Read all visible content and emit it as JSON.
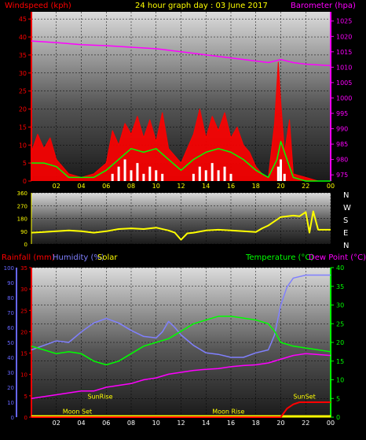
{
  "header": {
    "left_label": "Windspeed (kph)",
    "title": "24 hour graph day : 03 June 2017",
    "right_label": "Barometer (hpa)"
  },
  "panel3_header": {
    "rainfall_label": "Rainfall (mm)",
    "humidity_label": "Humidity (%)",
    "solar_label": "Solar",
    "temperature_label": "Temperature (°C)",
    "dewpoint_label": "Dew Point (°C)"
  },
  "colors": {
    "wind": "#ff0000",
    "gust": "#ff0000",
    "wind_avg": "#00ff00",
    "wind_low": "#ffffff",
    "barometer": "#ff00ff",
    "direction": "#ffff00",
    "humidity": "#8080ff",
    "temperature": "#00ff00",
    "dewpoint": "#ff00ff",
    "rain": "#ff0000",
    "solar": "#ffff00",
    "rain_axis": "#ff0000",
    "humidity_axis": "#6666ff",
    "temp_axis": "#00ff00",
    "annotation": "#ffff00"
  },
  "chart_data": [
    {
      "type": "line",
      "name": "wind-barometer",
      "x_ticks": [
        "02",
        "04",
        "06",
        "08",
        "10",
        "12",
        "14",
        "16",
        "18",
        "20",
        "22",
        "00"
      ],
      "y_left_ticks": [
        "0",
        "5",
        "10",
        "15",
        "20",
        "25",
        "30",
        "35",
        "40",
        "45"
      ],
      "y_left_range": [
        0,
        47
      ],
      "y_right_ticks": [
        "975",
        "980",
        "985",
        "990",
        "995",
        "1000",
        "1005",
        "1010",
        "1015",
        "1020",
        "1025"
      ],
      "y_right_range": [
        973,
        1028
      ],
      "x_range": [
        0,
        24
      ],
      "series": [
        {
          "key": "barometer",
          "values": [
            [
              0,
              1018.5
            ],
            [
              2,
              1018
            ],
            [
              4,
              1017.3
            ],
            [
              6,
              1017
            ],
            [
              8,
              1016.5
            ],
            [
              10,
              1016
            ],
            [
              12,
              1015
            ],
            [
              14,
              1014
            ],
            [
              16,
              1013
            ],
            [
              18,
              1012
            ],
            [
              19,
              1011.5
            ],
            [
              20,
              1012.5
            ],
            [
              21,
              1011.5
            ],
            [
              22,
              1011
            ],
            [
              24,
              1010.5
            ]
          ]
        },
        {
          "key": "gust",
          "values": [
            [
              0,
              8
            ],
            [
              0.5,
              13
            ],
            [
              1,
              9
            ],
            [
              1.5,
              12
            ],
            [
              2,
              6
            ],
            [
              3,
              2
            ],
            [
              4,
              1
            ],
            [
              5,
              2
            ],
            [
              6,
              5
            ],
            [
              6.5,
              14
            ],
            [
              7,
              10
            ],
            [
              7.5,
              16
            ],
            [
              8,
              13
            ],
            [
              8.5,
              18
            ],
            [
              9,
              12
            ],
            [
              9.5,
              17
            ],
            [
              10,
              11
            ],
            [
              10.5,
              19
            ],
            [
              11,
              9
            ],
            [
              11.5,
              7
            ],
            [
              12,
              5
            ],
            [
              12.5,
              9
            ],
            [
              13,
              13
            ],
            [
              13.5,
              20
            ],
            [
              14,
              12
            ],
            [
              14.5,
              18
            ],
            [
              15,
              14
            ],
            [
              15.5,
              19
            ],
            [
              16,
              12
            ],
            [
              16.5,
              15
            ],
            [
              17,
              10
            ],
            [
              17.5,
              8
            ],
            [
              18,
              4
            ],
            [
              18.5,
              2
            ],
            [
              19,
              1
            ],
            [
              19.5,
              16
            ],
            [
              19.8,
              33
            ],
            [
              20,
              22
            ],
            [
              20.3,
              8
            ],
            [
              20.7,
              17
            ],
            [
              21,
              2
            ],
            [
              22,
              1
            ],
            [
              23,
              0
            ],
            [
              24,
              0
            ]
          ]
        },
        {
          "key": "wind_avg",
          "values": [
            [
              0,
              5
            ],
            [
              1,
              5
            ],
            [
              2,
              4
            ],
            [
              3,
              1
            ],
            [
              4,
              1
            ],
            [
              5,
              1
            ],
            [
              6,
              3
            ],
            [
              7,
              6
            ],
            [
              8,
              9
            ],
            [
              9,
              8
            ],
            [
              10,
              9
            ],
            [
              11,
              6
            ],
            [
              12,
              3
            ],
            [
              13,
              6
            ],
            [
              14,
              8
            ],
            [
              15,
              9
            ],
            [
              16,
              8
            ],
            [
              17,
              6
            ],
            [
              18,
              3
            ],
            [
              19,
              1
            ],
            [
              19.7,
              6
            ],
            [
              20,
              11
            ],
            [
              20.5,
              6
            ],
            [
              21,
              1
            ],
            [
              22,
              0
            ],
            [
              24,
              0
            ]
          ]
        },
        {
          "key": "wind_low",
          "values": [
            [
              6.5,
              2
            ],
            [
              7,
              4
            ],
            [
              7.5,
              6
            ],
            [
              8,
              3
            ],
            [
              8.5,
              5
            ],
            [
              9,
              2
            ],
            [
              9.5,
              4
            ],
            [
              10,
              3
            ],
            [
              10.5,
              2
            ],
            [
              13,
              2
            ],
            [
              13.5,
              4
            ],
            [
              14,
              3
            ],
            [
              14.5,
              5
            ],
            [
              15,
              3
            ],
            [
              15.5,
              4
            ],
            [
              16,
              2
            ],
            [
              19.8,
              4
            ],
            [
              20,
              6
            ],
            [
              20.3,
              2
            ]
          ]
        }
      ]
    },
    {
      "type": "scatter",
      "name": "wind-direction",
      "x_range": [
        0,
        24
      ],
      "y_range": [
        0,
        360
      ],
      "y_ticks": [
        "0",
        "45",
        "90",
        "135",
        "180",
        "225",
        "270",
        "315",
        "360"
      ],
      "compass_labels": [
        "N",
        "W",
        "S",
        "E",
        "N"
      ],
      "series": [
        {
          "key": "direction",
          "values": [
            [
              0,
              80
            ],
            [
              1,
              85
            ],
            [
              2,
              90
            ],
            [
              3,
              95
            ],
            [
              4,
              90
            ],
            [
              5,
              80
            ],
            [
              6,
              90
            ],
            [
              7,
              105
            ],
            [
              8,
              110
            ],
            [
              9,
              105
            ],
            [
              10,
              115
            ],
            [
              11,
              95
            ],
            [
              11.5,
              80
            ],
            [
              12,
              30
            ],
            [
              12.5,
              75
            ],
            [
              13,
              80
            ],
            [
              14,
              95
            ],
            [
              15,
              100
            ],
            [
              16,
              95
            ],
            [
              17,
              90
            ],
            [
              18,
              85
            ],
            [
              18.5,
              110
            ],
            [
              19,
              130
            ],
            [
              19.5,
              160
            ],
            [
              20,
              190
            ],
            [
              21,
              200
            ],
            [
              21.5,
              195
            ],
            [
              22,
              225
            ],
            [
              22.3,
              80
            ],
            [
              22.6,
              230
            ],
            [
              23,
              100
            ],
            [
              24,
              100
            ]
          ]
        }
      ]
    },
    {
      "type": "line",
      "name": "temp-humidity-rain",
      "x_ticks": [
        "02",
        "04",
        "06",
        "08",
        "10",
        "12",
        "14",
        "16",
        "18",
        "20",
        "22",
        "00"
      ],
      "x_range": [
        0,
        24
      ],
      "y_rain_ticks": [
        "0",
        "5",
        "10",
        "15",
        "20",
        "25",
        "30",
        "35"
      ],
      "y_rain_range": [
        0,
        35
      ],
      "y_humidity_ticks": [
        "0",
        "10",
        "20",
        "30",
        "40",
        "50",
        "60",
        "70",
        "80",
        "90",
        "100"
      ],
      "y_humidity_range": [
        0,
        100
      ],
      "y_temp_ticks": [
        "0",
        "5",
        "10",
        "15",
        "20",
        "25",
        "30",
        "35",
        "40"
      ],
      "y_temp_range": [
        0,
        40
      ],
      "annotations": [
        {
          "text": "SunRise",
          "x": 4.5,
          "y_temp": 5
        },
        {
          "text": "Moon Set",
          "x": 2.5,
          "y_temp": 1
        },
        {
          "text": "Moon Rise",
          "x": 14.5,
          "y_temp": 1
        },
        {
          "text": "SunSet",
          "x": 21,
          "y_temp": 5
        }
      ],
      "series": [
        {
          "key": "humidity",
          "values": [
            [
              0,
              45
            ],
            [
              1,
              48
            ],
            [
              2,
              51
            ],
            [
              3,
              50
            ],
            [
              4,
              57
            ],
            [
              5,
              63
            ],
            [
              6,
              66
            ],
            [
              7,
              63
            ],
            [
              8,
              58
            ],
            [
              9,
              54
            ],
            [
              10,
              53
            ],
            [
              10.5,
              57
            ],
            [
              11,
              64
            ],
            [
              11.5,
              60
            ],
            [
              12,
              55
            ],
            [
              13,
              48
            ],
            [
              14,
              43
            ],
            [
              15,
              42
            ],
            [
              16,
              40
            ],
            [
              17,
              40
            ],
            [
              18,
              43
            ],
            [
              19,
              45
            ],
            [
              19.5,
              55
            ],
            [
              20,
              75
            ],
            [
              20.5,
              87
            ],
            [
              21,
              93
            ],
            [
              22,
              95
            ],
            [
              24,
              95
            ]
          ]
        },
        {
          "key": "temperature",
          "values": [
            [
              0,
              19
            ],
            [
              1,
              18
            ],
            [
              2,
              17
            ],
            [
              3,
              17.5
            ],
            [
              4,
              17
            ],
            [
              5,
              15
            ],
            [
              6,
              14
            ],
            [
              7,
              15
            ],
            [
              8,
              17
            ],
            [
              9,
              19
            ],
            [
              10,
              20
            ],
            [
              11,
              21
            ],
            [
              12,
              23
            ],
            [
              13,
              25
            ],
            [
              14,
              26
            ],
            [
              15,
              27
            ],
            [
              16,
              27
            ],
            [
              17,
              26.5
            ],
            [
              18,
              26
            ],
            [
              19,
              25
            ],
            [
              19.5,
              23
            ],
            [
              20,
              20
            ],
            [
              21,
              19
            ],
            [
              22,
              18.5
            ],
            [
              24,
              17.5
            ]
          ]
        },
        {
          "key": "dewpoint",
          "values": [
            [
              0,
              5
            ],
            [
              1,
              5.5
            ],
            [
              2,
              6
            ],
            [
              3,
              6.5
            ],
            [
              4,
              7
            ],
            [
              5,
              7
            ],
            [
              6,
              8
            ],
            [
              7,
              8.5
            ],
            [
              8,
              9
            ],
            [
              9,
              10
            ],
            [
              10,
              10.5
            ],
            [
              11,
              11.5
            ],
            [
              12,
              12
            ],
            [
              13,
              12.5
            ],
            [
              14,
              12.8
            ],
            [
              15,
              13
            ],
            [
              16,
              13.5
            ],
            [
              17,
              13.8
            ],
            [
              18,
              14
            ],
            [
              19,
              14.5
            ],
            [
              20,
              15.5
            ],
            [
              21,
              16.5
            ],
            [
              22,
              17
            ],
            [
              24,
              16.5
            ]
          ]
        },
        {
          "key": "rain",
          "values": [
            [
              0,
              0
            ],
            [
              20,
              0
            ],
            [
              20.5,
              2
            ],
            [
              21,
              3
            ],
            [
              21.5,
              3.5
            ],
            [
              22,
              3.5
            ],
            [
              24,
              3.5
            ]
          ]
        },
        {
          "key": "solar",
          "values": [
            [
              0,
              0
            ],
            [
              24,
              0
            ]
          ]
        }
      ]
    }
  ]
}
